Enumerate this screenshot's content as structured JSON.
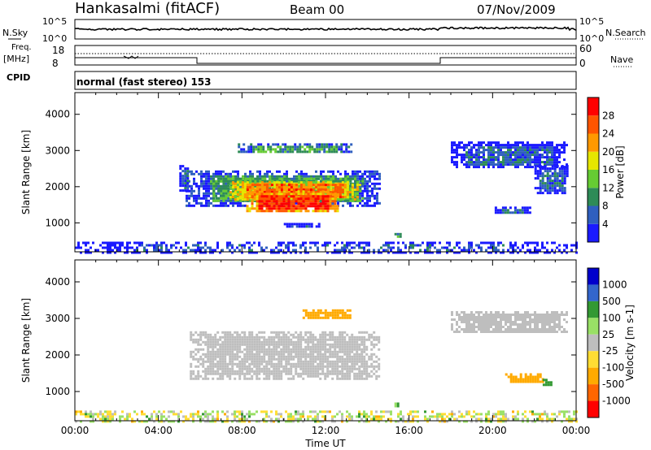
{
  "header": {
    "station": "Hankasalmi (fitACF)",
    "beam": "Beam 00",
    "date": "07/Nov/2009"
  },
  "strip_nsky": {
    "label_left": "N.Sky",
    "label_right": "N.Search",
    "tick_top": "10^5",
    "tick_bottom": "10^0",
    "tick_top_right": "10^5",
    "tick_bottom_right": "10^0"
  },
  "strip_freq": {
    "label_left_1": "Freq.",
    "label_left_2": "[MHz]",
    "label_cpid": "CPID",
    "label_right": "Nave",
    "tick_left_top": "18",
    "tick_left_bottom": "8",
    "tick_right_top": "60",
    "tick_right_bottom": "0"
  },
  "cpid_text": "normal (fast stereo) 153",
  "colors": {
    "power": [
      "#1a1aff",
      "#2f5fbf",
      "#2e8b57",
      "#66cc33",
      "#e6e600",
      "#ff9900",
      "#ff5500",
      "#ff0000"
    ],
    "velocity": [
      "#ff0000",
      "#ff6600",
      "#ffaa00",
      "#ffdd33",
      "#bebebe",
      "#99e066",
      "#339933",
      "#3366cc",
      "#0000cc"
    ],
    "ground_scatter": "#bebebe"
  },
  "chart_data": [
    {
      "type": "heatmap",
      "name": "power",
      "xlabel": "",
      "ylabel": "Slant Range [km]",
      "xlim": [
        0,
        24
      ],
      "ylim": [
        200,
        4600
      ],
      "yticks": [
        "1000",
        "2000",
        "3000",
        "4000"
      ],
      "colorbar": {
        "label": "Power [dB]",
        "ticks": [
          "4",
          "8",
          "12",
          "16",
          "20",
          "24",
          "28"
        ],
        "range": [
          0,
          32
        ]
      },
      "regions": [
        {
          "t0": 5.3,
          "t1": 14.6,
          "r0": 1500,
          "r1": 2450,
          "value": 9
        },
        {
          "t0": 6.6,
          "t1": 13.8,
          "r0": 1600,
          "r1": 2250,
          "value": 18
        },
        {
          "t0": 7.4,
          "t1": 13.6,
          "r0": 1650,
          "r1": 2150,
          "value": 25
        },
        {
          "t0": 8.2,
          "t1": 12.6,
          "r0": 1300,
          "r1": 1900,
          "value": 28
        },
        {
          "t0": 5.0,
          "t1": 5.4,
          "r0": 1900,
          "r1": 2600,
          "value": 6
        },
        {
          "t0": 7.8,
          "t1": 13.2,
          "r0": 2950,
          "r1": 3200,
          "value": 11
        },
        {
          "t0": 18.0,
          "t1": 23.5,
          "r0": 2550,
          "r1": 3250,
          "value": 6
        },
        {
          "t0": 22.0,
          "t1": 23.6,
          "r0": 1800,
          "r1": 2600,
          "value": 6
        },
        {
          "t0": 20.1,
          "t1": 21.8,
          "r0": 1250,
          "r1": 1450,
          "value": 6
        },
        {
          "t0": 0.0,
          "t1": 24.0,
          "r0": 200,
          "r1": 480,
          "value": 5
        },
        {
          "t0": 15.3,
          "t1": 15.6,
          "r0": 640,
          "r1": 720,
          "value": 14
        },
        {
          "t0": 10.0,
          "t1": 11.8,
          "r0": 900,
          "r1": 1000,
          "value": 6
        }
      ]
    },
    {
      "type": "heatmap",
      "name": "velocity",
      "xlabel": "Time UT",
      "ylabel": "Slant Range [km]",
      "xlim": [
        0,
        24
      ],
      "ylim": [
        200,
        4600
      ],
      "xticks": [
        "00:00",
        "04:00",
        "08:00",
        "12:00",
        "16:00",
        "20:00",
        "00:00"
      ],
      "yticks": [
        "1000",
        "2000",
        "3000",
        "4000"
      ],
      "colorbar": {
        "label": "Velocity [m s-1]",
        "ticks": [
          "1000",
          "500",
          "100",
          "25",
          "-25",
          "-100",
          "-500",
          "-1000"
        ]
      },
      "regions": [
        {
          "t0": 5.5,
          "t1": 14.6,
          "r0": 1350,
          "r1": 2650,
          "value": 0
        },
        {
          "t0": 10.9,
          "t1": 13.2,
          "r0": 3000,
          "r1": 3250,
          "value": -300
        },
        {
          "t0": 18.0,
          "t1": 23.6,
          "r0": 2600,
          "r1": 3200,
          "value": 0
        },
        {
          "t0": 20.6,
          "t1": 22.4,
          "r0": 1250,
          "r1": 1500,
          "value": -300
        },
        {
          "t0": 22.4,
          "t1": 22.8,
          "r0": 1150,
          "r1": 1350,
          "value": 200
        },
        {
          "t0": 0.0,
          "t1": 24.0,
          "r0": 200,
          "r1": 480,
          "value": -20
        },
        {
          "t0": 15.3,
          "t1": 15.6,
          "r0": 620,
          "r1": 700,
          "value": 150
        }
      ]
    }
  ]
}
